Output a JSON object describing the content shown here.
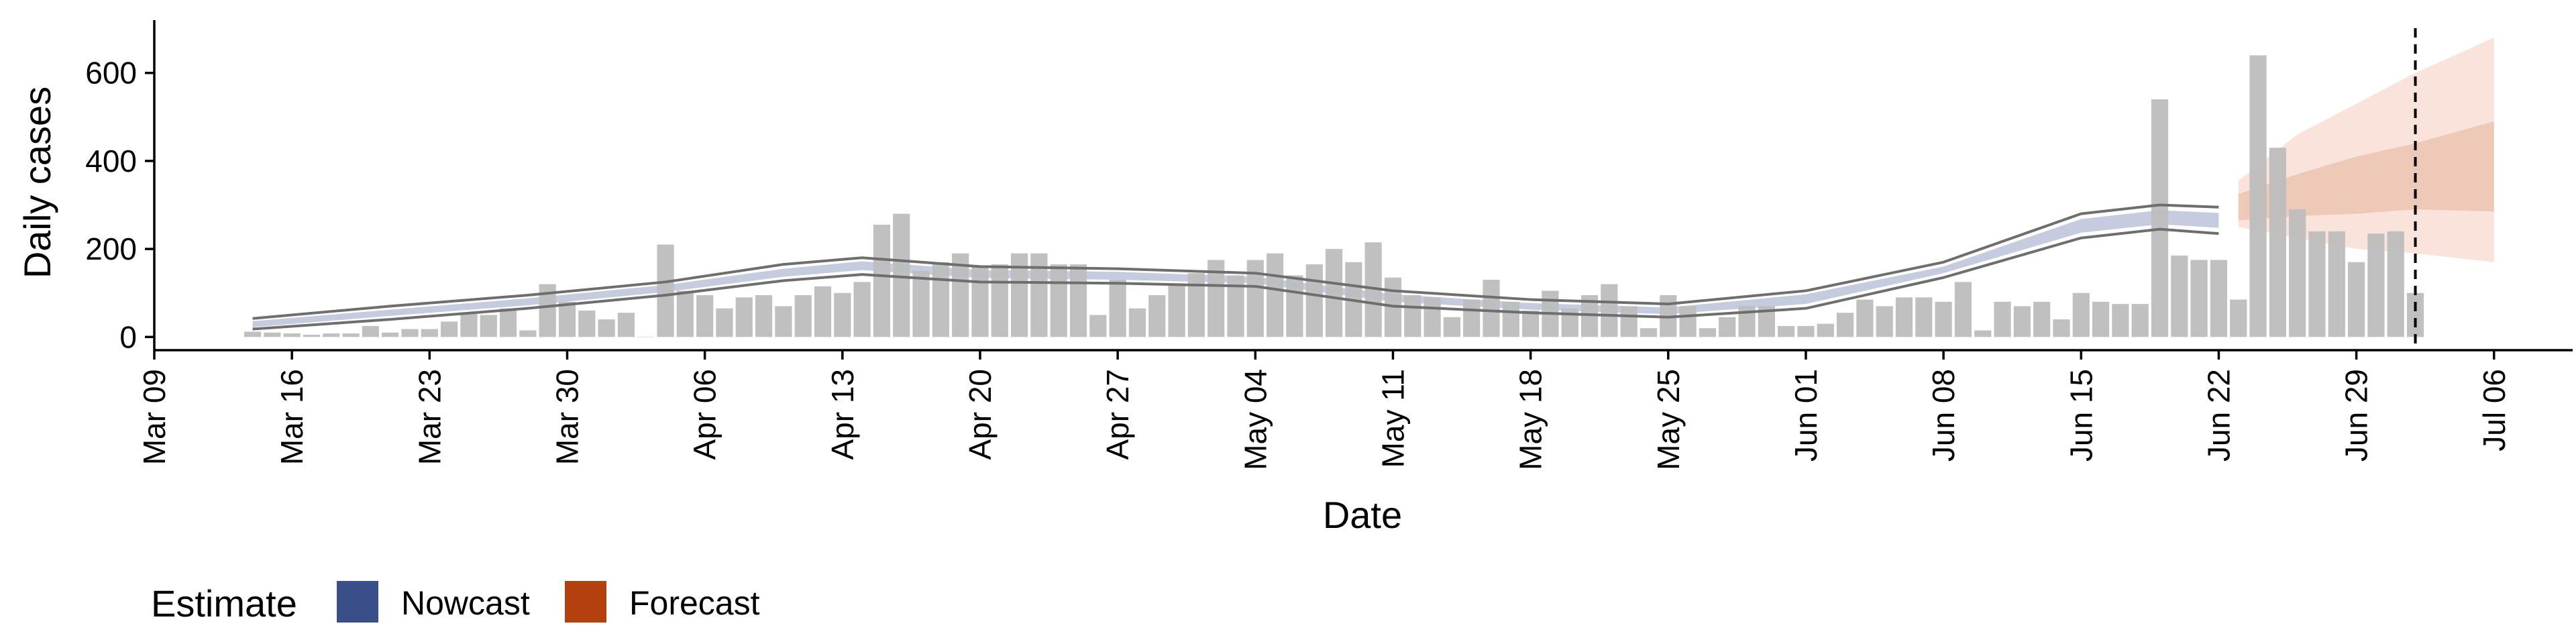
{
  "chart_data": {
    "type": "bar",
    "xlabel": "Date",
    "ylabel": "Daily cases",
    "ylim": [
      -30,
      720
    ],
    "yticks": [
      0,
      200,
      400,
      600
    ],
    "xlim": [
      "2020-03-09",
      "2020-07-10"
    ],
    "xticks": [
      "2020-03-09",
      "2020-03-16",
      "2020-03-23",
      "2020-03-30",
      "2020-04-06",
      "2020-04-13",
      "2020-04-20",
      "2020-04-27",
      "2020-05-04",
      "2020-05-11",
      "2020-05-18",
      "2020-05-25",
      "2020-06-01",
      "2020-06-08",
      "2020-06-15",
      "2020-06-22",
      "2020-06-29",
      "2020-07-06"
    ],
    "xtick_labels": [
      "Mar 09",
      "Mar 16",
      "Mar 23",
      "Mar 30",
      "Apr 06",
      "Apr 13",
      "Apr 20",
      "Apr 27",
      "May 04",
      "May 11",
      "May 18",
      "May 25",
      "Jun 01",
      "Jun 08",
      "Jun 15",
      "Jun 22",
      "Jun 29",
      "Jul 06"
    ],
    "grid": false,
    "legend": {
      "title": "Estimate",
      "placement": "bottom-left",
      "entries": [
        {
          "label": "Nowcast",
          "color": "#3a4f8a"
        },
        {
          "label": "Forecast",
          "color": "#b5400f"
        }
      ]
    },
    "colors": {
      "bars": "#bdbdbd",
      "nowcast_band": "#c5cce0",
      "nowcast_line": "#6e6e6e",
      "forecast_outer": "#f9e3da",
      "forecast_inner": "#eec9b8",
      "reference_line": "#000000"
    },
    "reference_date": "2020-07-02",
    "bars": {
      "start": "2020-03-14",
      "values": [
        12,
        10,
        8,
        5,
        8,
        8,
        25,
        10,
        18,
        18,
        35,
        55,
        50,
        65,
        15,
        120,
        80,
        60,
        40,
        55,
        0,
        210,
        105,
        95,
        65,
        90,
        95,
        70,
        95,
        115,
        100,
        125,
        255,
        280,
        150,
        170,
        190,
        160,
        165,
        190,
        190,
        165,
        165,
        50,
        130,
        65,
        95,
        120,
        145,
        175,
        140,
        175,
        190,
        140,
        165,
        200,
        170,
        215,
        135,
        95,
        90,
        45,
        85,
        130,
        80,
        60,
        105,
        65,
        95,
        120,
        70,
        20,
        95,
        70,
        20,
        45,
        70,
        70,
        25,
        25,
        30,
        55,
        85,
        70,
        90,
        90,
        80,
        125,
        15,
        80,
        70,
        80,
        40,
        100,
        80,
        75,
        75,
        540,
        185,
        175,
        175,
        85,
        640,
        430,
        290,
        240,
        240,
        170,
        235,
        240,
        100
      ]
    },
    "nowcast": {
      "dates": [
        "2020-03-14",
        "2020-03-21",
        "2020-03-28",
        "2020-04-04",
        "2020-04-10",
        "2020-04-14",
        "2020-04-20",
        "2020-04-27",
        "2020-05-04",
        "2020-05-11",
        "2020-05-18",
        "2020-05-25",
        "2020-06-01",
        "2020-06-08",
        "2020-06-15",
        "2020-06-19",
        "2020-06-22"
      ],
      "upper": [
        42,
        70,
        95,
        125,
        165,
        180,
        160,
        155,
        145,
        105,
        85,
        75,
        105,
        170,
        280,
        300,
        295
      ],
      "lower": [
        18,
        40,
        65,
        95,
        128,
        142,
        125,
        122,
        115,
        70,
        55,
        45,
        65,
        135,
        225,
        245,
        235
      ],
      "band_upper": [
        36,
        62,
        88,
        118,
        155,
        172,
        152,
        148,
        137,
        97,
        77,
        67,
        97,
        160,
        268,
        288,
        282
      ],
      "band_lower": [
        22,
        48,
        72,
        102,
        137,
        152,
        134,
        130,
        122,
        80,
        62,
        52,
        75,
        145,
        237,
        256,
        248
      ]
    },
    "forecast": {
      "dates": [
        "2020-06-23",
        "2020-06-26",
        "2020-06-29",
        "2020-07-02",
        "2020-07-06"
      ],
      "outer_upper": [
        355,
        460,
        530,
        600,
        680
      ],
      "outer_lower": [
        250,
        225,
        200,
        190,
        170
      ],
      "inner_upper": [
        325,
        370,
        410,
        440,
        490
      ],
      "inner_lower": [
        265,
        275,
        280,
        290,
        285
      ]
    }
  }
}
